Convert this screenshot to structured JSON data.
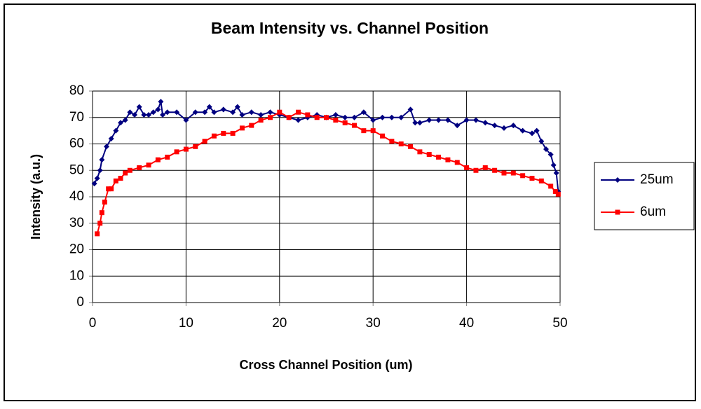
{
  "chart_data": {
    "type": "line",
    "title": "Beam Intensity  vs. Channel Position",
    "x_label": "Cross Channel Position (um)",
    "y_label": "Intensity (a.u.)",
    "xlim": [
      0,
      50
    ],
    "xticks": [
      0,
      10,
      20,
      30,
      40,
      50
    ],
    "ylim": [
      0,
      80
    ],
    "yticks": [
      0,
      10,
      20,
      30,
      40,
      50,
      60,
      70,
      80
    ],
    "grid": true,
    "legend": "right",
    "series": [
      {
        "name": "25um",
        "color": "#000080",
        "marker": "diamond",
        "x": [
          0.2,
          0.5,
          0.8,
          1,
          1.5,
          2,
          2.5,
          3,
          3.5,
          4,
          4.5,
          5,
          5.5,
          6,
          6.5,
          7,
          7.3,
          7.5,
          8,
          9,
          10,
          11,
          12,
          12.5,
          13,
          14,
          15,
          15.5,
          16,
          17,
          18,
          19,
          20,
          21,
          22,
          23,
          24,
          25,
          26,
          27,
          28,
          29,
          30,
          31,
          32,
          33,
          34,
          34.5,
          35,
          36,
          37,
          38,
          39,
          40,
          41,
          42,
          43,
          44,
          45,
          46,
          47,
          47.5,
          48,
          48.5,
          49,
          49.3,
          49.6,
          49.8
        ],
        "values": [
          45,
          47,
          50,
          54,
          59,
          62,
          65,
          68,
          69,
          72,
          71,
          74,
          71,
          71,
          72,
          73,
          76,
          71,
          72,
          72,
          69,
          72,
          72,
          74,
          72,
          73,
          72,
          74,
          71,
          72,
          71,
          72,
          71,
          70,
          69,
          70,
          71,
          70,
          71,
          70,
          70,
          72,
          69,
          70,
          70,
          70,
          73,
          68,
          68,
          69,
          69,
          69,
          67,
          69,
          69,
          68,
          67,
          66,
          67,
          65,
          64,
          65,
          61,
          58,
          56,
          52,
          49,
          42
        ]
      },
      {
        "name": "6um",
        "color": "#ff0000",
        "marker": "square",
        "x": [
          0.5,
          0.8,
          1,
          1.3,
          1.7,
          2,
          2.5,
          3,
          3.5,
          4,
          5,
          6,
          7,
          8,
          9,
          10,
          11,
          12,
          13,
          14,
          15,
          16,
          17,
          18,
          19,
          20,
          21,
          22,
          23,
          24,
          25,
          26,
          27,
          28,
          29,
          30,
          31,
          32,
          33,
          34,
          35,
          36,
          37,
          38,
          39,
          40,
          41,
          42,
          43,
          44,
          45,
          46,
          47,
          48,
          49,
          49.5,
          49.8
        ],
        "values": [
          26,
          30,
          34,
          38,
          43,
          43,
          46,
          47,
          49,
          50,
          51,
          52,
          54,
          55,
          57,
          58,
          59,
          61,
          63,
          64,
          64,
          66,
          67,
          69,
          70,
          72,
          70,
          72,
          71,
          70,
          70,
          69,
          68,
          67,
          65,
          65,
          63,
          61,
          60,
          59,
          57,
          56,
          55,
          54,
          53,
          51,
          50,
          51,
          50,
          49,
          49,
          48,
          47,
          46,
          44,
          42,
          41
        ]
      }
    ]
  }
}
